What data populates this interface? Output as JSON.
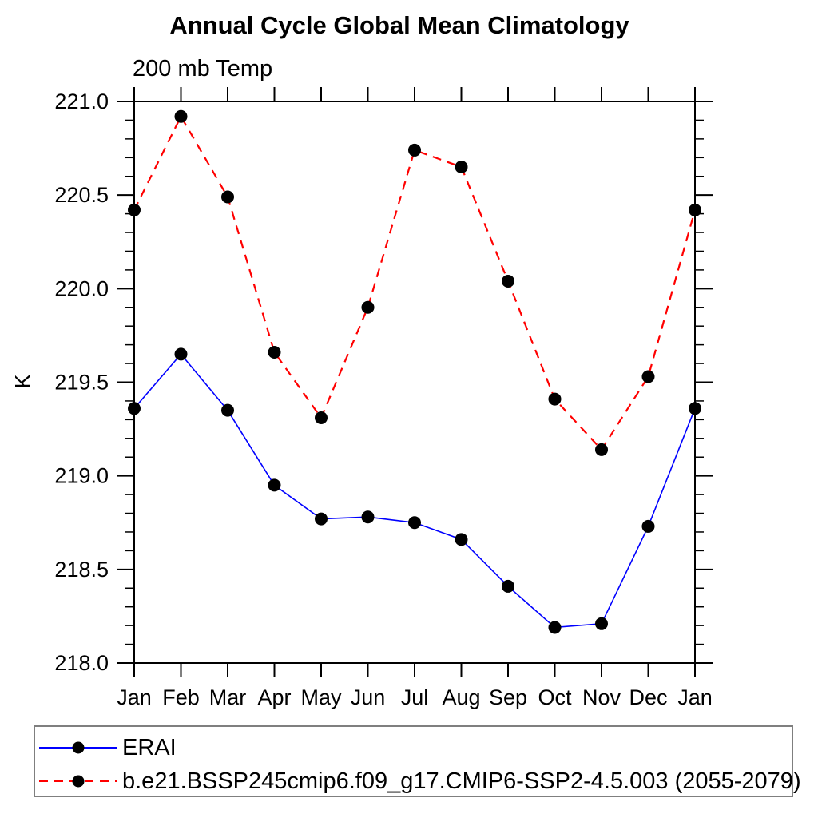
{
  "header": {
    "title": "Annual Cycle Global Mean Climatology",
    "subtitle": "200 mb Temp"
  },
  "colors": {
    "erai_line": "#0000ff",
    "model_line": "#ff0000",
    "marker": "#000000",
    "axis": "#000000",
    "legend_border": "#7f7f7f",
    "background": "#ffffff"
  },
  "chart_data": {
    "type": "line",
    "title": "Annual Cycle Global Mean Climatology",
    "subtitle": "200 mb Temp",
    "xlabel": "",
    "ylabel": "K",
    "categories": [
      "Jan",
      "Feb",
      "Mar",
      "Apr",
      "May",
      "Jun",
      "Jul",
      "Aug",
      "Sep",
      "Oct",
      "Nov",
      "Dec",
      "Jan"
    ],
    "series": [
      {
        "name": "ERAI",
        "color": "#0000ff",
        "line_style": "solid",
        "marker": "filled-circle",
        "marker_color": "#000000",
        "values": [
          219.36,
          219.65,
          219.35,
          218.95,
          218.77,
          218.78,
          218.75,
          218.66,
          218.41,
          218.19,
          218.21,
          218.73,
          219.36
        ]
      },
      {
        "name": "b.e21.BSSP245cmip6.f09_g17.CMIP6-SSP2-4.5.003 (2055-2079)",
        "color": "#ff0000",
        "line_style": "dashed",
        "marker": "filled-circle",
        "marker_color": "#000000",
        "values": [
          220.42,
          220.92,
          220.49,
          219.66,
          219.31,
          219.9,
          220.74,
          220.65,
          220.04,
          219.41,
          219.14,
          219.53,
          220.42
        ]
      }
    ],
    "ylim": [
      218.0,
      221.0
    ],
    "ytick_major": 0.5,
    "ytick_minor": 0.1,
    "ytick_labels": [
      "218.0",
      "218.5",
      "219.0",
      "219.5",
      "220.0",
      "220.5",
      "221.0"
    ],
    "grid": false,
    "legend_position": "bottom-left"
  }
}
